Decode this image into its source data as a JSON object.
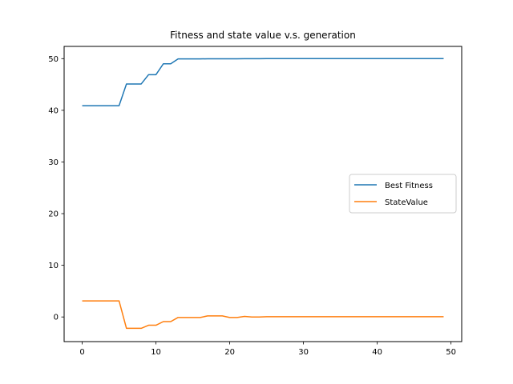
{
  "chart_data": {
    "type": "line",
    "title": "Fitness and state value v.s. generation",
    "xlabel": "",
    "ylabel": "",
    "xlim": [
      -2.45,
      51.45
    ],
    "ylim": [
      -4.77,
      52.37
    ],
    "x_ticks": [
      0,
      10,
      20,
      30,
      40,
      50
    ],
    "y_ticks": [
      0,
      10,
      20,
      30,
      40,
      50
    ],
    "grid": false,
    "legend_position": "center-right",
    "x": [
      0,
      1,
      2,
      3,
      4,
      5,
      6,
      7,
      8,
      9,
      10,
      11,
      12,
      13,
      14,
      15,
      16,
      17,
      18,
      19,
      20,
      21,
      22,
      23,
      24,
      25,
      26,
      27,
      28,
      29,
      30,
      31,
      32,
      33,
      34,
      35,
      36,
      37,
      38,
      39,
      40,
      41,
      42,
      43,
      44,
      45,
      46,
      47,
      48,
      49
    ],
    "series": [
      {
        "name": "Best Fitness",
        "color": "#1f77b4",
        "values": [
          40.9,
          40.9,
          40.9,
          40.9,
          40.9,
          40.9,
          45.1,
          45.1,
          45.1,
          46.9,
          46.9,
          49.0,
          49.0,
          49.95,
          49.95,
          49.95,
          49.95,
          49.97,
          49.97,
          49.97,
          49.97,
          49.97,
          49.99,
          49.99,
          49.99,
          50.0,
          50.0,
          50.0,
          50.0,
          50.0,
          50.0,
          50.0,
          50.0,
          50.0,
          50.0,
          50.0,
          50.0,
          50.0,
          50.0,
          50.0,
          50.0,
          50.0,
          50.0,
          50.0,
          50.0,
          50.0,
          50.0,
          50.0,
          50.0,
          50.0
        ]
      },
      {
        "name": "StateValue",
        "color": "#ff7f0e",
        "values": [
          3.1,
          3.1,
          3.1,
          3.1,
          3.1,
          3.1,
          -2.2,
          -2.2,
          -2.2,
          -1.6,
          -1.6,
          -0.9,
          -0.9,
          -0.1,
          -0.1,
          -0.1,
          -0.1,
          0.2,
          0.2,
          0.2,
          -0.1,
          -0.1,
          0.1,
          0.0,
          0.0,
          0.05,
          0.05,
          0.05,
          0.05,
          0.05,
          0.05,
          0.05,
          0.05,
          0.05,
          0.05,
          0.05,
          0.05,
          0.05,
          0.05,
          0.05,
          0.05,
          0.05,
          0.05,
          0.05,
          0.05,
          0.05,
          0.05,
          0.05,
          0.05,
          0.05
        ]
      }
    ]
  }
}
